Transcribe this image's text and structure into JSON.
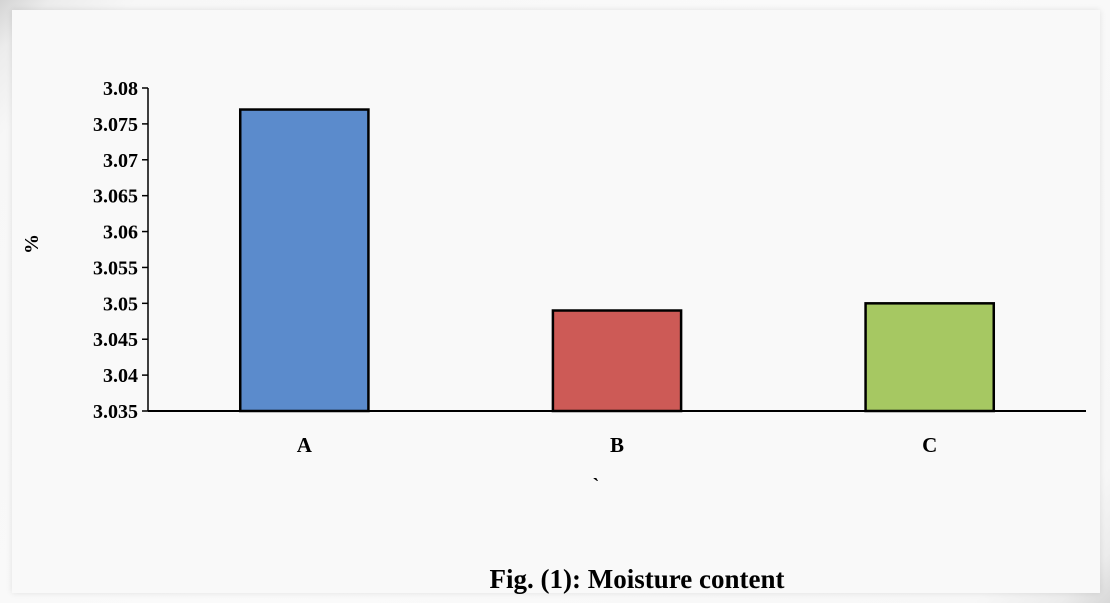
{
  "chart_data": {
    "type": "bar",
    "categories": [
      "A",
      "B",
      "C"
    ],
    "values": [
      3.077,
      3.049,
      3.05
    ],
    "ylabel": "%",
    "xlabel": "`",
    "ylim": [
      3.035,
      3.08
    ],
    "ytick_step": 0.005,
    "ytick_labels": [
      "3.035",
      "3.04",
      "3.045",
      "3.05",
      "3.055",
      "3.06",
      "3.065",
      "3.07",
      "3.075",
      "3.08"
    ],
    "grid": false,
    "legend": "none",
    "colors": [
      "#5b8bcc",
      "#cd5a56",
      "#a6c862"
    ]
  },
  "caption": "Fig. (1): Moisture content"
}
